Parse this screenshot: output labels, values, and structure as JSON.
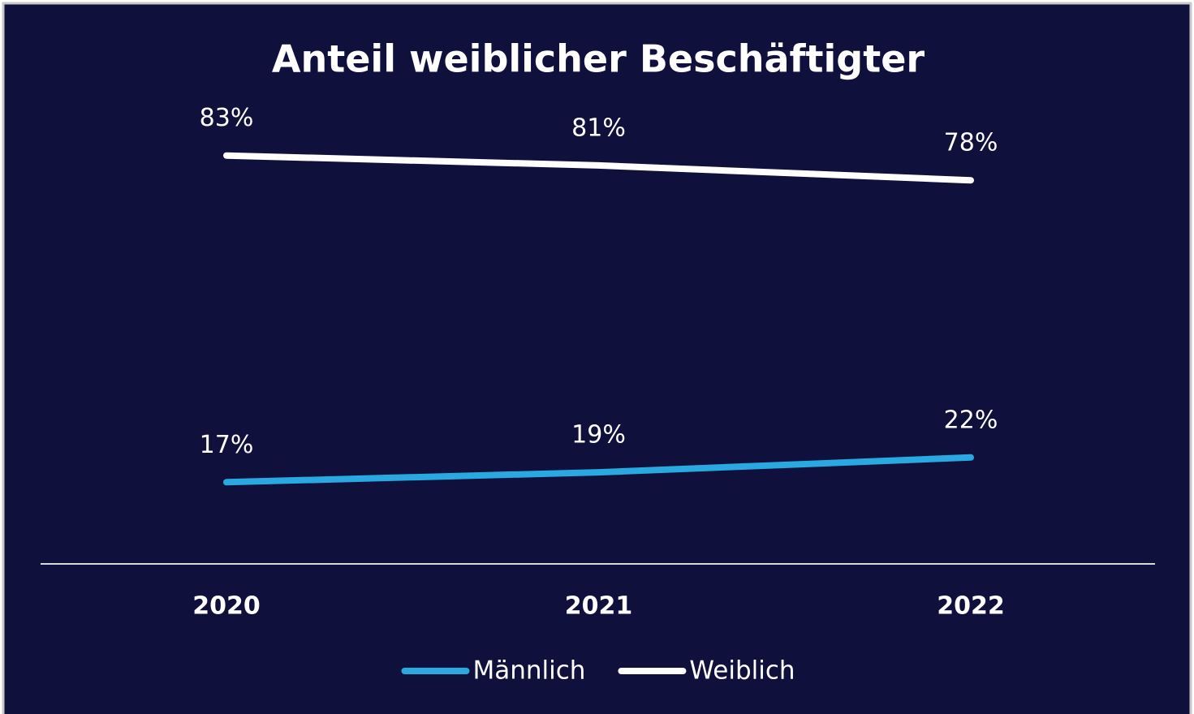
{
  "chart_data": {
    "type": "line",
    "title": "Anteil weiblicher Beschäftigter",
    "categories": [
      "2020",
      "2021",
      "2022"
    ],
    "series": [
      {
        "name": "Männlich",
        "color": "#2aa9e0",
        "values": [
          17,
          19,
          22
        ],
        "value_labels": [
          "17%",
          "19%",
          "22%"
        ]
      },
      {
        "name": "Weiblich",
        "color": "#ffffff",
        "values": [
          83,
          81,
          78
        ],
        "value_labels": [
          "83%",
          "81%",
          "78%"
        ]
      }
    ],
    "ylim": [
      0,
      100
    ],
    "legend": "bottom"
  }
}
